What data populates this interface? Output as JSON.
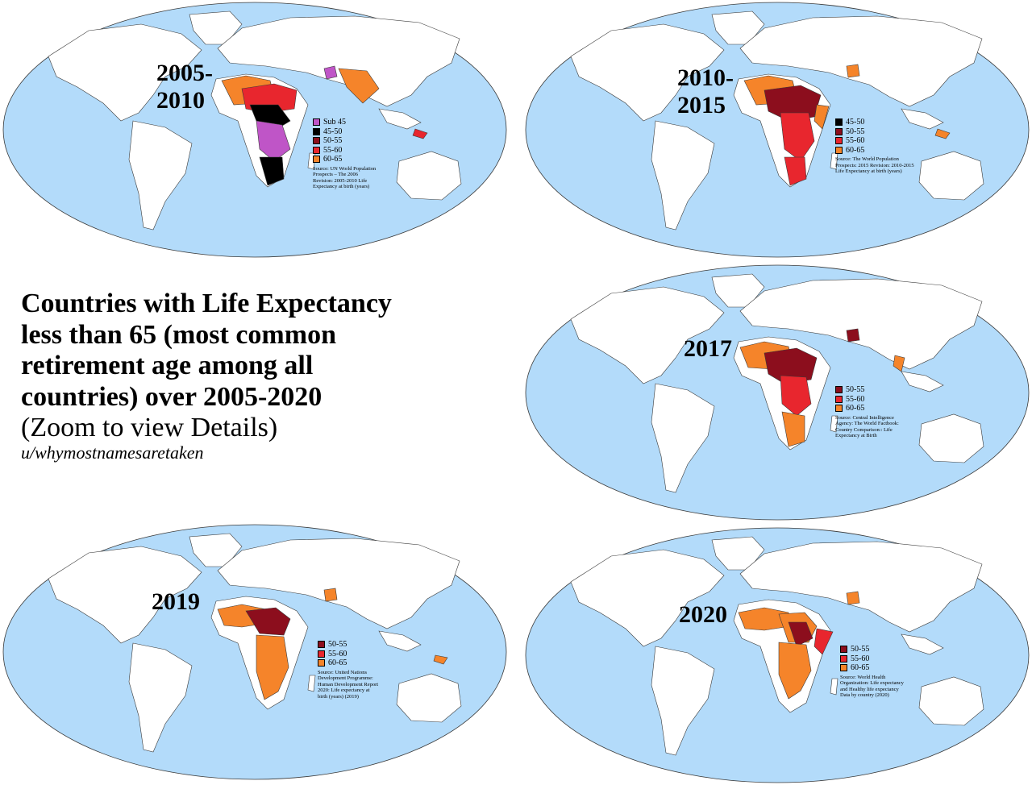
{
  "colors": {
    "ocean": "#b3dbfa",
    "land": "#ffffff",
    "border": "#3a3a3a",
    "sub45": "#bf55c7",
    "r45_50": "#000000",
    "r50_55": "#8c0e1d",
    "r55_60": "#e8262e",
    "r60_65": "#f5842a"
  },
  "title": "Countries with Life Expectancy\nless than 65 (most common\nretirement age among all\ncountries) over 2005-2020",
  "subtitle": "(Zoom to view Details)",
  "author": "u/whymostnamesaretaken",
  "maps": [
    {
      "id": "2005-2010",
      "year_label": "2005-\n2010",
      "legend": [
        {
          "label": "Sub 45",
          "color": "#bf55c7"
        },
        {
          "label": "45-50",
          "color": "#000000"
        },
        {
          "label": "50-55",
          "color": "#8c0e1d"
        },
        {
          "label": "55-60",
          "color": "#e8262e"
        },
        {
          "label": "60-65",
          "color": "#f5842a"
        }
      ],
      "source": "Source: UN World Population\nProspects – The 2006\nRevision: 2005-2010 Life\nExpectancy at birth (years)"
    },
    {
      "id": "2010-2015",
      "year_label": "2010-\n2015",
      "legend": [
        {
          "label": "45-50",
          "color": "#000000"
        },
        {
          "label": "50-55",
          "color": "#8c0e1d"
        },
        {
          "label": "55-60",
          "color": "#e8262e"
        },
        {
          "label": "60-65",
          "color": "#f5842a"
        }
      ],
      "source": "Source: The World Population\nProspects: 2015 Revision: 2010-2015\nLife Expectancy at birth (years)"
    },
    {
      "id": "2017",
      "year_label": "2017",
      "legend": [
        {
          "label": "50-55",
          "color": "#8c0e1d"
        },
        {
          "label": "55-60",
          "color": "#e8262e"
        },
        {
          "label": "60-65",
          "color": "#f5842a"
        }
      ],
      "source": "Source: Central Intelligence\nAgency: The World Factbook:\nCountry Comparison:: Life\nExpectancy at Birth"
    },
    {
      "id": "2019",
      "year_label": "2019",
      "legend": [
        {
          "label": "50-55",
          "color": "#8c0e1d"
        },
        {
          "label": "55-60",
          "color": "#e8262e"
        },
        {
          "label": "60-65",
          "color": "#f5842a"
        }
      ],
      "source": "Source: United Nations\nDevelopment Programme:\nHuman Development Report\n2020: Life expectancy at\nbirth (years) (2019)"
    },
    {
      "id": "2020",
      "year_label": "2020",
      "legend": [
        {
          "label": "50-55",
          "color": "#8c0e1d"
        },
        {
          "label": "55-60",
          "color": "#e8262e"
        },
        {
          "label": "60-65",
          "color": "#f5842a"
        }
      ],
      "source": "Source: World Health\nOrganization: Life expectancy\nand Healthy life expectancy\nData by country (2020)"
    }
  ]
}
